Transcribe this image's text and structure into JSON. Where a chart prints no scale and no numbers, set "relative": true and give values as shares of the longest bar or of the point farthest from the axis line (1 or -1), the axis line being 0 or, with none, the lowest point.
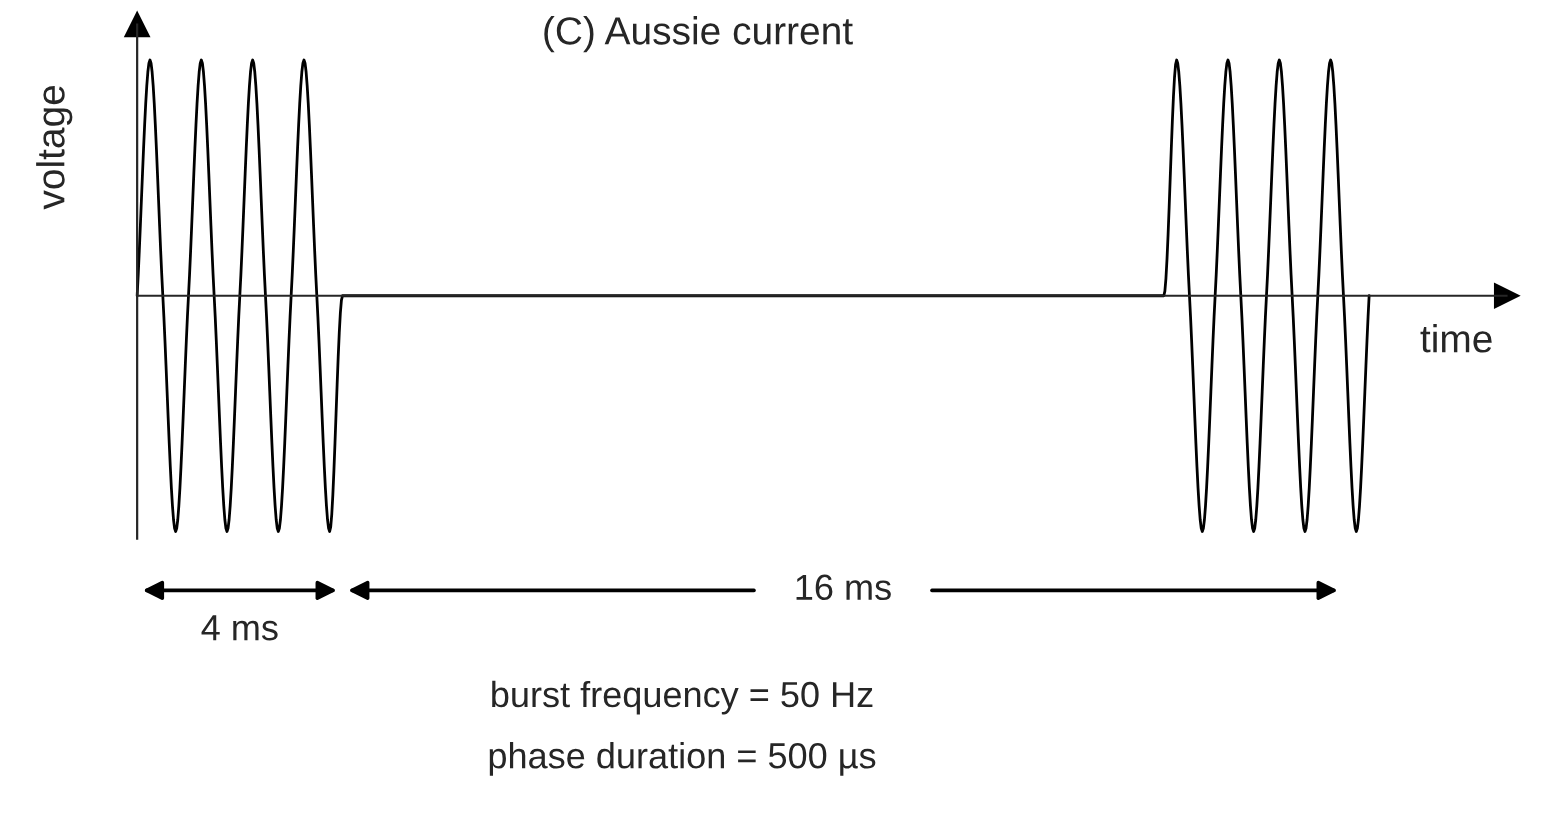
{
  "chart_data": {
    "type": "line",
    "title": "(C) Aussie current",
    "xlabel": "time",
    "ylabel": "voltage",
    "relative": true,
    "marker": "none",
    "line_style": "solid",
    "categories": [
      null,
      null,
      null,
      null,
      null,
      null,
      null,
      null,
      null,
      null,
      null,
      null,
      null,
      null,
      null,
      null,
      null,
      null,
      null,
      null,
      null,
      null,
      null,
      null,
      null,
      null,
      null,
      null,
      null,
      null,
      null,
      null,
      null,
      null,
      null,
      null,
      null,
      null,
      null,
      null,
      null,
      null,
      null,
      null,
      null,
      null,
      null,
      null,
      null,
      null,
      null,
      null,
      null,
      null,
      null,
      null,
      null,
      null,
      null,
      null,
      null,
      null,
      null,
      null,
      null,
      null,
      null,
      null,
      null,
      null,
      null,
      null,
      null,
      null,
      null,
      null,
      null,
      null,
      null,
      null,
      null,
      null,
      null,
      null,
      null,
      null,
      null,
      null,
      null,
      null,
      null,
      null,
      null,
      null,
      null,
      null,
      null
    ],
    "series": [
      {
        "color": "#000000",
        "values": [
          0,
          1,
          0,
          -1,
          0,
          1,
          0,
          -1,
          0,
          1,
          0,
          -1,
          0,
          1,
          0,
          -1,
          0,
          0,
          0,
          0,
          0,
          0,
          0,
          0,
          0,
          0,
          0,
          0,
          0,
          0,
          0,
          0,
          0,
          0,
          0,
          0,
          0,
          0,
          0,
          0,
          0,
          0,
          0,
          0,
          0,
          0,
          0,
          0,
          0,
          0,
          0,
          0,
          0,
          0,
          0,
          0,
          0,
          0,
          0,
          0,
          0,
          0,
          0,
          0,
          0,
          0,
          0,
          0,
          0,
          0,
          0,
          0,
          0,
          0,
          0,
          0,
          0,
          0,
          0,
          0,
          0,
          1,
          0,
          -1,
          0,
          1,
          0,
          -1,
          0,
          1,
          0,
          -1,
          0,
          1,
          0,
          -1,
          0
        ]
      }
    ],
    "annotations": [
      "4 ms",
      "16 ms",
      "burst frequency = 50 Hz",
      "phase duration = 500 µs"
    ]
  }
}
